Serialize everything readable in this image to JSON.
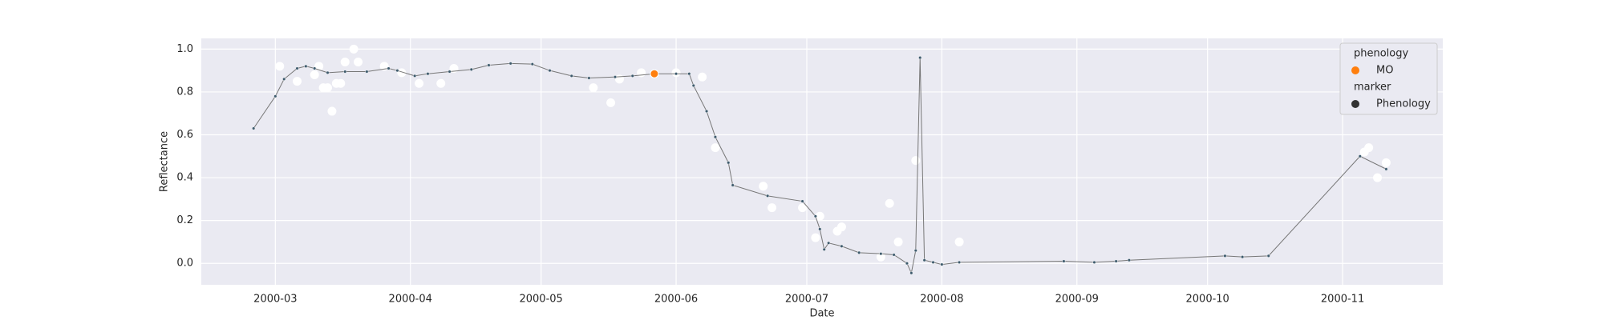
{
  "chart_data": {
    "type": "line",
    "x_label": "Date",
    "y_label": "Reflectance",
    "xlim": [
      44,
      329
    ],
    "ylim": [
      -0.1,
      1.05
    ],
    "xticks": [
      {
        "value": 61,
        "label": "2000-03"
      },
      {
        "value": 92,
        "label": "2000-04"
      },
      {
        "value": 122,
        "label": "2000-05"
      },
      {
        "value": 153,
        "label": "2000-06"
      },
      {
        "value": 183,
        "label": "2000-07"
      },
      {
        "value": 214,
        "label": "2000-08"
      },
      {
        "value": 245,
        "label": "2000-09"
      },
      {
        "value": 275,
        "label": "2000-10"
      },
      {
        "value": 306,
        "label": "2000-11"
      }
    ],
    "yticks": [
      {
        "value": 0,
        "label": "0.0"
      },
      0.2,
      0.4,
      0.6,
      0.8,
      {
        "value": 1,
        "label": "1.0"
      }
    ],
    "grid": true,
    "background": "#eaeaf2",
    "series": [
      {
        "type": "scatter",
        "color": "#ffffff",
        "x": [
          62,
          66,
          71,
          70,
          72,
          73,
          74,
          75,
          76,
          77,
          79,
          80,
          86,
          90,
          94,
          99,
          102,
          134,
          138,
          140,
          145,
          153,
          159,
          162,
          173,
          175,
          182,
          185,
          186,
          190,
          191,
          200,
          202,
          204,
          208,
          218,
          311,
          312,
          314,
          316
        ],
        "values": [
          0.92,
          0.85,
          0.92,
          0.88,
          0.82,
          0.82,
          0.71,
          0.84,
          0.84,
          0.94,
          1.0,
          0.94,
          0.92,
          0.89,
          0.84,
          0.84,
          0.91,
          0.82,
          0.75,
          0.86,
          0.89,
          0.89,
          0.87,
          0.54,
          0.36,
          0.26,
          0.26,
          0.12,
          0.22,
          0.15,
          0.17,
          0.03,
          0.28,
          0.1,
          0.48,
          0.1,
          0.52,
          0.54,
          0.4,
          0.47
        ]
      },
      {
        "type": "line",
        "color": "#777777",
        "marker_color": "#3d5a6c",
        "x": [
          56,
          61,
          63,
          66,
          68,
          70,
          73,
          77,
          82,
          87,
          89,
          93,
          96,
          101,
          106,
          110,
          115,
          120,
          124,
          129,
          133,
          139,
          143,
          148,
          153,
          156,
          157,
          160,
          162,
          165,
          166,
          174,
          182,
          185,
          186,
          187,
          188,
          191,
          195,
          200,
          203,
          206,
          207,
          208,
          209,
          210,
          212,
          214,
          218,
          242,
          249,
          254,
          257,
          279,
          283,
          289,
          310,
          316
        ],
        "values": [
          0.63,
          0.78,
          0.86,
          0.91,
          0.92,
          0.91,
          0.89,
          0.895,
          0.895,
          0.91,
          0.9,
          0.875,
          0.885,
          0.895,
          0.905,
          0.925,
          0.933,
          0.93,
          0.9,
          0.875,
          0.865,
          0.87,
          0.875,
          0.885,
          0.885,
          0.885,
          0.83,
          0.71,
          0.59,
          0.47,
          0.365,
          0.315,
          0.29,
          0.22,
          0.16,
          0.065,
          0.095,
          0.08,
          0.05,
          0.045,
          0.04,
          0.0,
          -0.045,
          0.06,
          0.96,
          0.015,
          0.005,
          -0.005,
          0.005,
          0.01,
          0.005,
          0.01,
          0.015,
          0.035,
          0.03,
          0.035,
          0.5,
          0.44
        ]
      },
      {
        "type": "scatter",
        "name": "MO",
        "color": "#ff7f0e",
        "x": [
          148
        ],
        "values": [
          0.885
        ]
      }
    ],
    "legend": {
      "loc": "upper right",
      "groups": [
        {
          "title": "phenology",
          "entries": [
            {
              "label": "MO",
              "color": "#ff7f0e"
            }
          ]
        },
        {
          "title": "marker",
          "entries": [
            {
              "label": "Phenology",
              "color": "#333333"
            }
          ]
        }
      ]
    }
  }
}
